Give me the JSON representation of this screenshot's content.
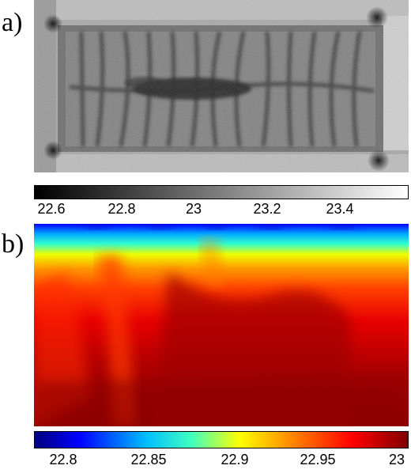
{
  "panels": [
    {
      "label": "a)",
      "colorbar": {
        "colormap": "gray",
        "range": [
          22.55,
          23.57
        ],
        "ticks": [
          "22.6",
          "22.8",
          "23",
          "23.2",
          "23.4"
        ]
      }
    },
    {
      "label": "b)",
      "colorbar": {
        "colormap": "jet",
        "range": [
          22.78,
          23.0
        ],
        "ticks": [
          "22.8",
          "22.85",
          "22.9",
          "22.95",
          "23"
        ]
      }
    }
  ]
}
